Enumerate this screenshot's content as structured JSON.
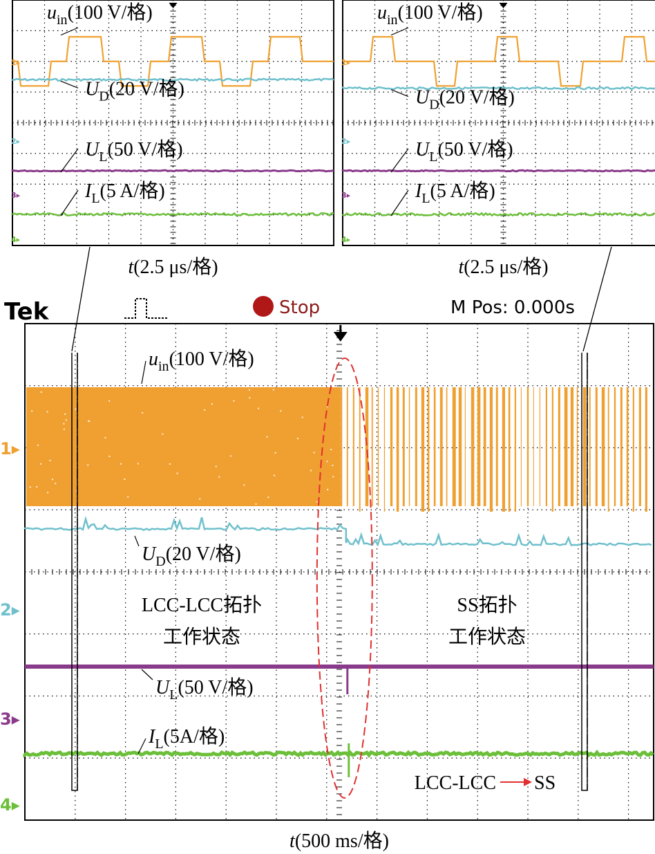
{
  "colors": {
    "u_in": "#f0a030",
    "U_D": "#6fc0cc",
    "U_L": "#8a3a8a",
    "I_L": "#6cbf3a",
    "grid": "#000000",
    "highlight": "#e03030"
  },
  "header": {
    "brand": "Tek",
    "trigger_icon": "pulse-trigger-icon",
    "status_icon": "stop-dot-icon",
    "status": "Stop",
    "mpos": "M Pos: 0.000s"
  },
  "chart_data": [
    {
      "type": "line",
      "panel": "zoom-left",
      "xlabel": "t(2.5 μs/格)",
      "grid": true,
      "divisions": {
        "x": 10,
        "y": 8
      },
      "series": [
        {
          "name": "u_in(100 V/格)",
          "key": "u_in",
          "shape": "three-level-square",
          "high_div": 0.5,
          "zero_div": 0,
          "low_div": -0.5
        },
        {
          "name": "U_D(20 V/格)",
          "key": "U_D",
          "level_div": -0.65
        },
        {
          "name": "U_L(50 V/格)",
          "key": "U_L",
          "level_div": -1.75
        },
        {
          "name": "I_L(5 A/格)",
          "key": "I_L",
          "level_div": -2.45
        }
      ]
    },
    {
      "type": "line",
      "panel": "zoom-right",
      "xlabel": "t(2.5 μs/格)",
      "grid": true,
      "divisions": {
        "x": 10,
        "y": 8
      },
      "series": [
        {
          "name": "u_in(100 V/格)",
          "key": "u_in",
          "shape": "three-level-square-sparse",
          "high_div": 0.5,
          "zero_div": 0,
          "low_div": -0.5
        },
        {
          "name": "U_D(20 V/格)",
          "key": "U_D",
          "level_div": -0.95
        },
        {
          "name": "U_L(50 V/格)",
          "key": "U_L",
          "level_div": -1.75
        },
        {
          "name": "I_L(5 A/格)",
          "key": "I_L",
          "level_div": -2.45
        }
      ]
    },
    {
      "type": "line",
      "panel": "main",
      "xlabel": "t(500 ms/格)",
      "grid": true,
      "divisions": {
        "x": 12.5,
        "y": 8
      },
      "switch_time_div": 6,
      "series": [
        {
          "name": "u_in(100 V/格)",
          "key": "u_in",
          "envelope": "dense band, gaps after switch"
        },
        {
          "name": "U_D(20 V/格)",
          "key": "U_D",
          "before_level": "high",
          "after_level": "low"
        },
        {
          "name": "U_L(50 V/格)",
          "key": "U_L",
          "level": "constant"
        },
        {
          "name": "I_L(5A/格)",
          "key": "I_L",
          "level": "constant"
        }
      ],
      "annotations": {
        "left_state": [
          "LCC-LCC拓扑",
          "工作状态"
        ],
        "right_state": [
          "SS拓扑",
          "工作状态"
        ],
        "transition_from": "LCC-LCC",
        "transition_to": "SS"
      },
      "channel_markers": [
        "1",
        "2",
        "3",
        "4"
      ]
    }
  ]
}
